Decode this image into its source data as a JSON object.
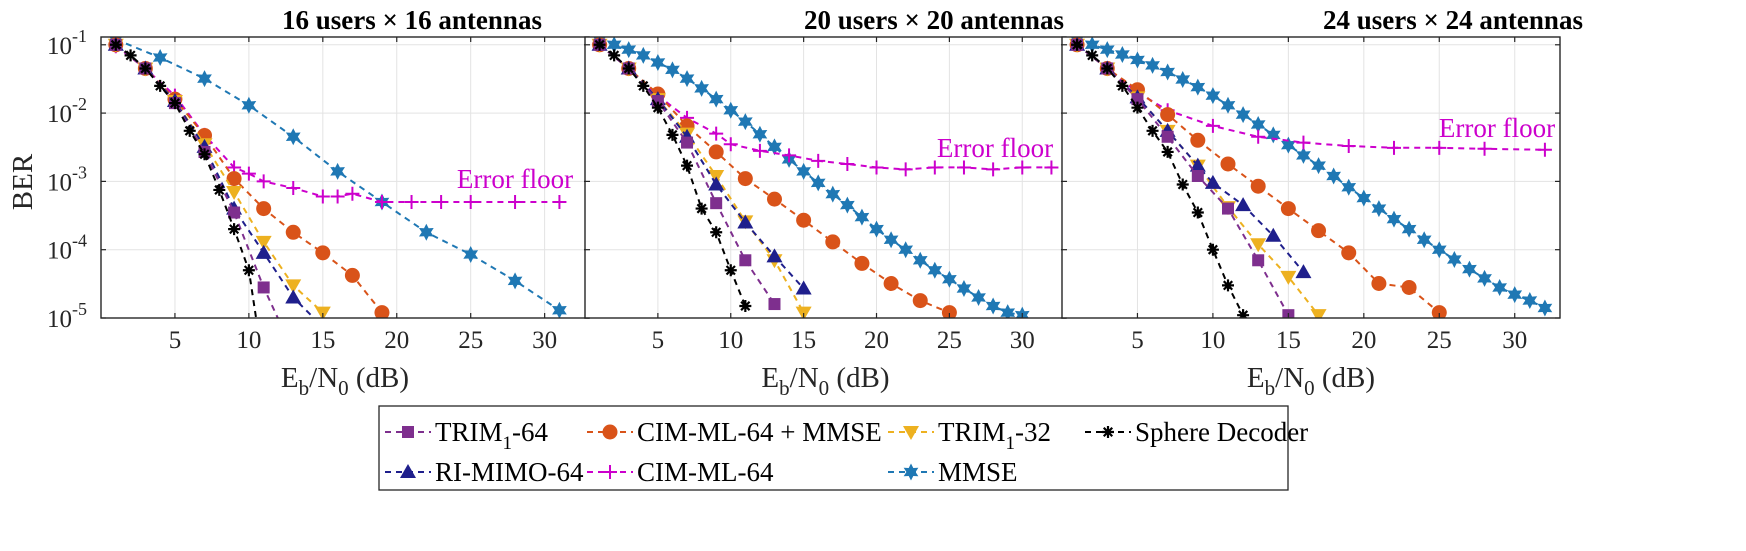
{
  "chart_data": {
    "type": "line",
    "ylabel": "BER",
    "xlabel": {
      "main": "E",
      "sub1": "b",
      "mid": "/N",
      "sub2": "0",
      "unit": " (dB)"
    },
    "x_ticks": [
      5,
      10,
      15,
      20,
      25,
      30
    ],
    "y_ticks": [
      {
        "value": 0.1,
        "base": "10",
        "exp": "-1"
      },
      {
        "value": 0.01,
        "base": "10",
        "exp": "-2"
      },
      {
        "value": 0.001,
        "base": "10",
        "exp": "-3"
      },
      {
        "value": 0.0001,
        "base": "10",
        "exp": "-4"
      },
      {
        "value": 1e-05,
        "base": "10",
        "exp": "-5"
      }
    ],
    "xlim": [
      0,
      33
    ],
    "ylim": [
      1e-05,
      0.13
    ],
    "yscale": "log",
    "legend": [
      {
        "key": "trim64",
        "text": "TRIM",
        "sub": "1",
        "suffix": "-64"
      },
      {
        "key": "cimmmse",
        "text": "CIM-ML-64 + MMSE",
        "sub": "",
        "suffix": ""
      },
      {
        "key": "trim32",
        "text": "TRIM",
        "sub": "1",
        "suffix": "-32"
      },
      {
        "key": "sphere",
        "text": "Sphere Decoder",
        "sub": "",
        "suffix": ""
      },
      {
        "key": "rimimo",
        "text": "RI-MIMO-64",
        "sub": "",
        "suffix": ""
      },
      {
        "key": "cimml",
        "text": "CIM-ML-64",
        "sub": "",
        "suffix": ""
      },
      {
        "key": "mmse",
        "text": "MMSE",
        "sub": "",
        "suffix": ""
      }
    ],
    "styles": {
      "trim64": {
        "color": "#7e2f8e",
        "marker": "square"
      },
      "cimmmse": {
        "color": "#d95319",
        "marker": "circle"
      },
      "trim32": {
        "color": "#edb120",
        "marker": "triangle-down"
      },
      "sphere": {
        "color": "#000000",
        "marker": "asterisk"
      },
      "rimimo": {
        "color": "#1f1f8c",
        "marker": "triangle-up"
      },
      "cimml": {
        "color": "#cc00cc",
        "marker": "plus"
      },
      "mmse": {
        "color": "#1f78b4",
        "marker": "hexagram"
      }
    },
    "panels": [
      {
        "title": "16 users × 16 antennas",
        "annotation": "Error floor",
        "series": {
          "mmse": {
            "x": [
              1,
              4,
              7,
              10,
              13,
              16,
              19,
              22,
              25,
              28,
              31
            ],
            "y": [
              0.12,
              0.065,
              0.032,
              0.013,
              0.0045,
              0.0014,
              0.0005,
              0.00018,
              8.5e-05,
              3.5e-05,
              1.3e-05
            ]
          },
          "cimml": {
            "x": [
              1,
              3,
              5,
              7,
              9,
              10,
              11,
              13,
              15,
              16,
              17,
              19,
              21,
              23,
              25,
              28,
              31
            ],
            "y": [
              0.095,
              0.045,
              0.018,
              0.0048,
              0.0016,
              0.0013,
              0.001,
              0.0008,
              0.0006,
              0.0006,
              0.00066,
              0.0005,
              0.0005,
              0.0005,
              0.0005,
              0.0005,
              0.0005
            ]
          },
          "cimmmse": {
            "x": [
              1,
              3,
              5,
              7,
              9,
              11,
              13,
              15,
              17,
              19
            ],
            "y": [
              0.1,
              0.045,
              0.016,
              0.0047,
              0.0011,
              0.0004,
              0.00018,
              9e-05,
              4.2e-05,
              1.2e-05
            ]
          },
          "trim32": {
            "x": [
              1,
              3,
              5,
              7,
              9,
              11,
              13,
              15
            ],
            "y": [
              0.1,
              0.045,
              0.015,
              0.0035,
              0.0007,
              0.00013,
              3e-05,
              1.2e-05
            ]
          },
          "rimimo": {
            "x": [
              1,
              3,
              5,
              7,
              9,
              11,
              13,
              14.5
            ],
            "y": [
              0.1,
              0.045,
              0.015,
              0.0032,
              0.0004,
              9e-05,
              2e-05,
              9.5e-06
            ]
          },
          "trim64": {
            "x": [
              1,
              3,
              5,
              7,
              9,
              11,
              12
            ],
            "y": [
              0.1,
              0.045,
              0.014,
              0.0027,
              0.00035,
              2.8e-05,
              9.5e-06
            ]
          },
          "sphere": {
            "x": [
              1,
              2,
              3,
              4,
              5,
              6,
              7,
              8,
              9,
              10,
              10.5
            ],
            "y": [
              0.1,
              0.07,
              0.045,
              0.025,
              0.014,
              0.0055,
              0.0025,
              0.00075,
              0.0002,
              5e-05,
              9.5e-06
            ]
          }
        }
      },
      {
        "title": "20 users × 20 antennas",
        "annotation": "Error floor",
        "series": {
          "mmse": {
            "x": [
              1,
              2,
              3,
              4,
              5,
              6,
              7,
              8,
              9,
              10,
              11,
              12,
              13,
              14,
              15,
              16,
              17,
              18,
              19,
              20,
              21,
              22,
              23,
              24,
              25,
              26,
              27,
              28,
              29,
              30
            ],
            "y": [
              0.12,
              0.1,
              0.085,
              0.07,
              0.055,
              0.043,
              0.032,
              0.023,
              0.016,
              0.011,
              0.0075,
              0.0049,
              0.0032,
              0.0021,
              0.0014,
              0.00095,
              0.00065,
              0.00045,
              0.0003,
              0.0002,
              0.00014,
              0.0001,
              7e-05,
              5e-05,
              3.7e-05,
              2.7e-05,
              2e-05,
              1.5e-05,
              1.2e-05,
              1.1e-05
            ]
          },
          "cimml": {
            "x": [
              1,
              3,
              5,
              7,
              9,
              10,
              12,
              14,
              16,
              18,
              20,
              22,
              24,
              26,
              28,
              30,
              32
            ],
            "y": [
              0.1,
              0.045,
              0.018,
              0.0085,
              0.005,
              0.0035,
              0.0028,
              0.0024,
              0.002,
              0.0018,
              0.0016,
              0.0015,
              0.0016,
              0.0016,
              0.0015,
              0.0016,
              0.0016
            ]
          },
          "cimmmse": {
            "x": [
              1,
              3,
              5,
              7,
              9,
              11,
              13,
              15,
              17,
              19,
              21,
              23,
              25
            ],
            "y": [
              0.1,
              0.045,
              0.019,
              0.0065,
              0.0027,
              0.0011,
              0.00055,
              0.00027,
              0.00013,
              6.3e-05,
              3.2e-05,
              1.8e-05,
              1.2e-05
            ]
          },
          "trim32": {
            "x": [
              1,
              3,
              5,
              7,
              9,
              11,
              13,
              15
            ],
            "y": [
              0.1,
              0.045,
              0.016,
              0.005,
              0.0012,
              0.00026,
              7e-05,
              1.2e-05
            ]
          },
          "rimimo": {
            "x": [
              1,
              3,
              5,
              7,
              9,
              11,
              13,
              15
            ],
            "y": [
              0.1,
              0.045,
              0.016,
              0.0045,
              0.0009,
              0.00025,
              8e-05,
              2.7e-05
            ]
          },
          "trim64": {
            "x": [
              1,
              3,
              5,
              7,
              9,
              11,
              13
            ],
            "y": [
              0.1,
              0.045,
              0.015,
              0.0037,
              0.00048,
              7e-05,
              1.6e-05
            ]
          },
          "sphere": {
            "x": [
              1,
              2,
              3,
              4,
              5,
              6,
              7,
              8,
              9,
              10,
              11
            ],
            "y": [
              0.1,
              0.07,
              0.045,
              0.025,
              0.012,
              0.0048,
              0.0017,
              0.0004,
              0.00018,
              5e-05,
              1.5e-05
            ]
          }
        }
      },
      {
        "title": "24 users × 24 antennas",
        "annotation": "Error floor",
        "series": {
          "mmse": {
            "x": [
              1,
              2,
              3,
              4,
              5,
              6,
              7,
              8,
              9,
              10,
              11,
              12,
              13,
              14,
              15,
              16,
              17,
              18,
              19,
              20,
              21,
              22,
              23,
              24,
              25,
              26,
              27,
              28,
              29,
              30,
              31,
              32
            ],
            "y": [
              0.12,
              0.1,
              0.085,
              0.072,
              0.06,
              0.05,
              0.04,
              0.031,
              0.024,
              0.018,
              0.013,
              0.0095,
              0.0068,
              0.0048,
              0.0034,
              0.0024,
              0.0017,
              0.0012,
              0.00082,
              0.00057,
              0.0004,
              0.00028,
              0.0002,
              0.00014,
              0.0001,
              7.2e-05,
              5.2e-05,
              3.8e-05,
              2.8e-05,
              2.2e-05,
              1.8e-05,
              1.4e-05
            ]
          },
          "cimml": {
            "x": [
              1,
              3,
              5,
              7,
              10,
              13,
              16,
              19,
              22,
              25,
              28,
              32
            ],
            "y": [
              0.1,
              0.045,
              0.02,
              0.011,
              0.0065,
              0.0045,
              0.0037,
              0.0033,
              0.0031,
              0.0031,
              0.003,
              0.0029
            ]
          },
          "cimmmse": {
            "x": [
              1,
              3,
              5,
              7,
              9,
              11,
              13,
              15,
              17,
              19,
              21,
              23,
              25
            ],
            "y": [
              0.1,
              0.045,
              0.022,
              0.0095,
              0.004,
              0.0018,
              0.00085,
              0.0004,
              0.00019,
              9e-05,
              3.2e-05,
              2.8e-05,
              1.2e-05
            ]
          },
          "trim32": {
            "x": [
              1,
              3,
              5,
              7,
              9,
              11,
              13,
              15,
              17
            ],
            "y": [
              0.1,
              0.045,
              0.017,
              0.0055,
              0.0017,
              0.00042,
              0.00012,
              4e-05,
              1.1e-05
            ]
          },
          "rimimo": {
            "x": [
              1,
              3,
              5,
              7,
              9,
              10,
              12,
              14,
              16
            ],
            "y": [
              0.1,
              0.045,
              0.017,
              0.0055,
              0.0017,
              0.00095,
              0.00045,
              0.00016,
              4.7e-05
            ]
          },
          "trim64": {
            "x": [
              1,
              3,
              5,
              7,
              9,
              11,
              13,
              15
            ],
            "y": [
              0.1,
              0.045,
              0.016,
              0.0045,
              0.0012,
              0.0004,
              7e-05,
              1.1e-05
            ]
          },
          "sphere": {
            "x": [
              1,
              2,
              3,
              4,
              5,
              6,
              7,
              8,
              9,
              10,
              11,
              12
            ],
            "y": [
              0.1,
              0.07,
              0.045,
              0.025,
              0.012,
              0.0055,
              0.0027,
              0.0009,
              0.00035,
              0.0001,
              3e-05,
              1.1e-05
            ]
          }
        }
      }
    ]
  }
}
